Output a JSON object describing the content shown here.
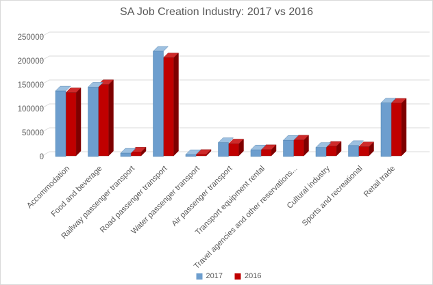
{
  "chart_data": {
    "type": "bar",
    "style": "3d-clustered-column",
    "title": "SA Job Creation Industry: 2017 vs 2016",
    "categories": [
      "Accommodation",
      "Food and beverage",
      "Railway passenger transport",
      "Road passenger transport",
      "Water passenger transport",
      "Air passenger transport",
      "Transport equipment rental",
      "Travel agencies and other reservations...",
      "Cultural industry",
      "Sports and recreational",
      "Retail trade"
    ],
    "series": [
      {
        "name": "2017",
        "color": "#6D9ECE",
        "values": [
          137000,
          145000,
          7000,
          220000,
          4000,
          29000,
          14000,
          34000,
          19000,
          23000,
          112000
        ]
      },
      {
        "name": "2016",
        "color": "#C00000",
        "values": [
          132000,
          149000,
          8000,
          205000,
          3000,
          25000,
          13000,
          33000,
          20000,
          19000,
          110000
        ]
      }
    ],
    "xlabel": "",
    "ylabel": "",
    "ylim": [
      0,
      250000
    ],
    "ytick_interval": 50000,
    "yticks": [
      "0",
      "50000",
      "100000",
      "150000",
      "200000",
      "250000"
    ],
    "grid": true,
    "legend_position": "bottom",
    "text_color": "#595959",
    "gridline_color": "#D9D9D9"
  }
}
